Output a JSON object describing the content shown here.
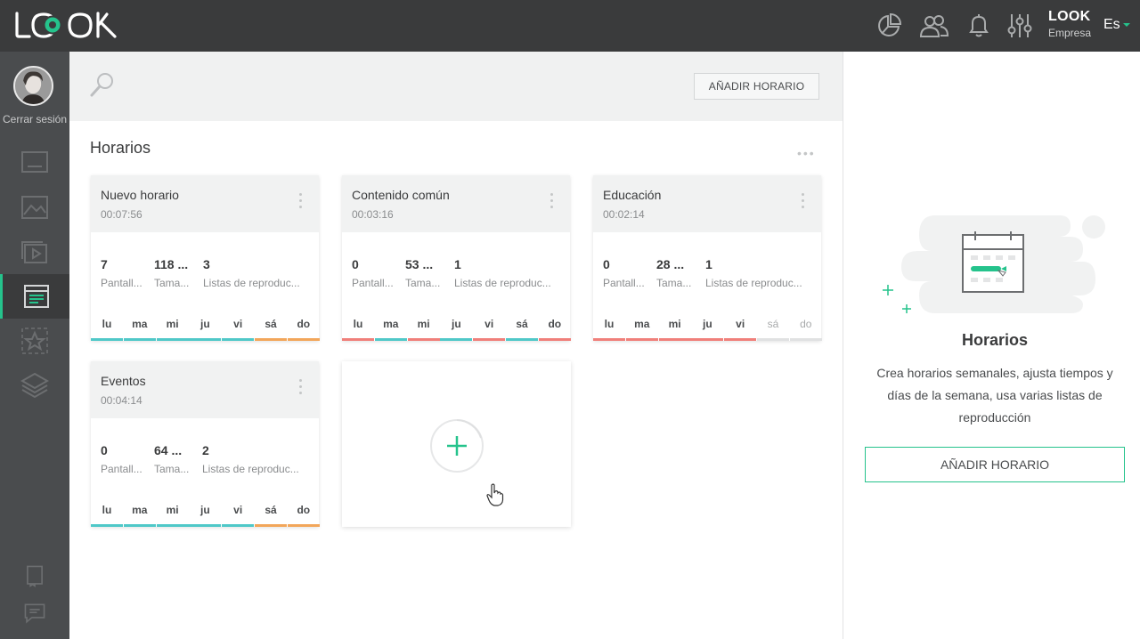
{
  "app": {
    "logo_text": "LOOK",
    "account_name": "LOOK",
    "account_type": "Empresa",
    "language": "Es",
    "accent_color": "#25c38c"
  },
  "topbar": {
    "icons": [
      "stats-icon",
      "users-icon",
      "bell-icon",
      "settings-sliders-icon"
    ]
  },
  "sidebar": {
    "logout_label": "Cerrar sesión",
    "items": [
      {
        "icon": "screen-icon"
      },
      {
        "icon": "image-icon"
      },
      {
        "icon": "video-icon"
      },
      {
        "icon": "schedule-icon",
        "active": true
      },
      {
        "icon": "star-icon"
      },
      {
        "icon": "layers-icon"
      }
    ],
    "bottom_items": [
      {
        "icon": "book-icon"
      },
      {
        "icon": "chat-icon"
      }
    ]
  },
  "toolbar": {
    "add_button_label": "AÑADIR HORARIO"
  },
  "section": {
    "title": "Horarios"
  },
  "cards": [
    {
      "name": "Nuevo horario",
      "duration": "00:07:56",
      "stats": [
        {
          "value": "7",
          "label": "Pantall..."
        },
        {
          "value": "118 ...",
          "label": "Tama..."
        },
        {
          "value": "3",
          "label": "Listas de reproduc..."
        }
      ],
      "days": [
        {
          "label": "lu",
          "status": "on"
        },
        {
          "label": "ma",
          "status": "on"
        },
        {
          "label": "mi",
          "status": "on"
        },
        {
          "label": "ju",
          "status": "on"
        },
        {
          "label": "vi",
          "status": "on"
        },
        {
          "label": "sá",
          "status": "partial"
        },
        {
          "label": "do",
          "status": "partial"
        }
      ]
    },
    {
      "name": "Contenido común",
      "duration": "00:03:16",
      "stats": [
        {
          "value": "0",
          "label": "Pantall..."
        },
        {
          "value": "53 ...",
          "label": "Tama..."
        },
        {
          "value": "1",
          "label": "Listas de reproduc..."
        }
      ],
      "days": [
        {
          "label": "lu",
          "status": "alert"
        },
        {
          "label": "ma",
          "status": "on"
        },
        {
          "label": "mi",
          "status": "alert"
        },
        {
          "label": "ju",
          "status": "on"
        },
        {
          "label": "vi",
          "status": "alert"
        },
        {
          "label": "sá",
          "status": "on"
        },
        {
          "label": "do",
          "status": "alert"
        }
      ]
    },
    {
      "name": "Educación",
      "duration": "00:02:14",
      "stats": [
        {
          "value": "0",
          "label": "Pantall..."
        },
        {
          "value": "28 ...",
          "label": "Tama..."
        },
        {
          "value": "1",
          "label": "Listas de reproduc..."
        }
      ],
      "days": [
        {
          "label": "lu",
          "status": "alert"
        },
        {
          "label": "ma",
          "status": "alert"
        },
        {
          "label": "mi",
          "status": "alert"
        },
        {
          "label": "ju",
          "status": "alert"
        },
        {
          "label": "vi",
          "status": "alert"
        },
        {
          "label": "sá",
          "status": "off"
        },
        {
          "label": "do",
          "status": "off"
        }
      ]
    },
    {
      "name": "Eventos",
      "duration": "00:04:14",
      "stats": [
        {
          "value": "0",
          "label": "Pantall..."
        },
        {
          "value": "64 ...",
          "label": "Tama..."
        },
        {
          "value": "2",
          "label": "Listas de reproduc..."
        }
      ],
      "days": [
        {
          "label": "lu",
          "status": "on"
        },
        {
          "label": "ma",
          "status": "on"
        },
        {
          "label": "mi",
          "status": "on"
        },
        {
          "label": "ju",
          "status": "on"
        },
        {
          "label": "vi",
          "status": "on"
        },
        {
          "label": "sá",
          "status": "partial"
        },
        {
          "label": "do",
          "status": "partial"
        }
      ]
    }
  ],
  "status_colors": {
    "on": "#4fc8c8",
    "alert": "#f07f7a",
    "partial": "#f2a65a",
    "off": "#e0e1e2"
  },
  "panel": {
    "title": "Horarios",
    "description": "Crea horarios semanales, ajusta tiempos y días de la semana, usa varias listas de reproducción",
    "button_label": "AÑADIR HORARIO"
  }
}
